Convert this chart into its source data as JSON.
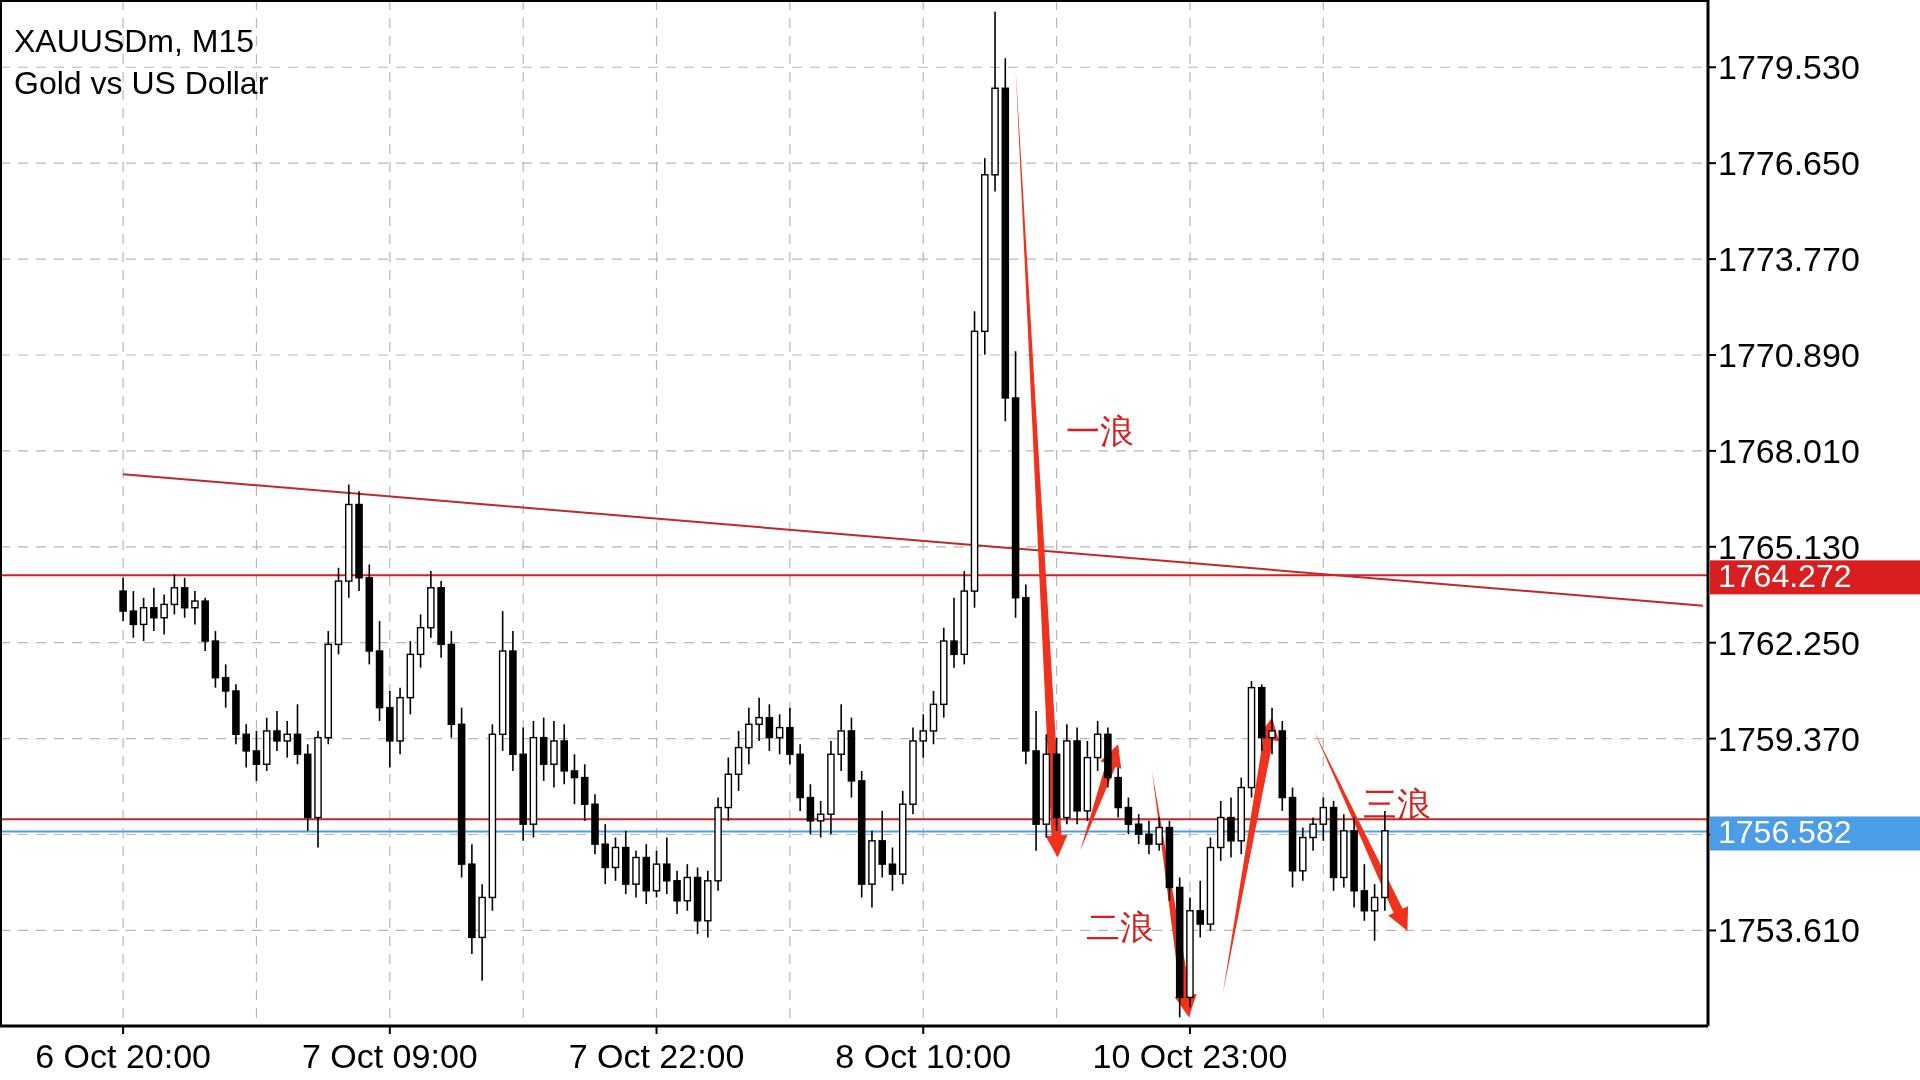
{
  "chart_data": {
    "type": "candlestick",
    "title": "XAUUSDm, M15",
    "subtitle": "Gold vs US Dollar",
    "categories": [
      "6 Oct 20:00",
      null,
      null,
      null,
      null,
      null,
      null,
      null,
      null,
      null,
      null,
      null,
      null,
      null,
      null,
      null,
      null,
      null,
      null,
      null,
      null,
      null,
      null,
      null,
      null,
      null,
      "7 Oct 09:00",
      null,
      null,
      null,
      null,
      null,
      null,
      null,
      null,
      null,
      null,
      null,
      null,
      null,
      null,
      null,
      null,
      null,
      null,
      null,
      null,
      null,
      null,
      null,
      null,
      null,
      "7 Oct 22:00",
      null,
      null,
      null,
      null,
      null,
      null,
      null,
      null,
      null,
      null,
      null,
      null,
      null,
      null,
      null,
      null,
      null,
      null,
      null,
      null,
      null,
      null,
      null,
      null,
      null,
      "8 Oct 10:00",
      null,
      null,
      null,
      null,
      null,
      null,
      null,
      null,
      null,
      null,
      null,
      null,
      null,
      null,
      null,
      null,
      null,
      null,
      null,
      null,
      null,
      null,
      null,
      null,
      null,
      "10 Oct 23:00",
      null,
      null,
      null,
      null,
      null,
      null,
      null,
      null,
      null,
      null,
      null,
      null,
      null,
      null,
      null,
      null,
      null,
      null,
      null,
      null,
      null,
      null,
      null,
      null,
      null,
      null,
      null,
      null,
      null,
      null,
      null,
      null,
      null,
      null,
      null,
      null,
      null,
      null,
      null,
      null,
      null,
      null,
      null,
      null,
      null,
      null,
      null,
      null,
      null,
      null
    ],
    "ohlc": [
      [
        1763.8,
        1764.2,
        1762.9,
        1763.2
      ],
      [
        1763.2,
        1763.8,
        1762.4,
        1762.8
      ],
      [
        1762.8,
        1763.6,
        1762.3,
        1763.3
      ],
      [
        1763.3,
        1763.9,
        1762.6,
        1763.0
      ],
      [
        1763.0,
        1763.7,
        1762.5,
        1763.4
      ],
      [
        1763.4,
        1764.3,
        1763.1,
        1763.9
      ],
      [
        1763.9,
        1764.2,
        1763.0,
        1763.3
      ],
      [
        1763.3,
        1763.8,
        1762.8,
        1763.5
      ],
      [
        1763.5,
        1763.6,
        1762.0,
        1762.3
      ],
      [
        1762.3,
        1762.6,
        1760.9,
        1761.2
      ],
      [
        1761.2,
        1761.6,
        1760.3,
        1760.8
      ],
      [
        1760.8,
        1761.0,
        1759.2,
        1759.5
      ],
      [
        1759.5,
        1759.8,
        1758.5,
        1759.0
      ],
      [
        1759.0,
        1759.6,
        1758.1,
        1758.6
      ],
      [
        1758.6,
        1760.0,
        1758.4,
        1759.6
      ],
      [
        1759.6,
        1760.2,
        1759.0,
        1759.3
      ],
      [
        1759.3,
        1759.9,
        1758.8,
        1759.5
      ],
      [
        1759.5,
        1760.4,
        1758.6,
        1758.9
      ],
      [
        1758.9,
        1759.2,
        1756.6,
        1757.0
      ],
      [
        1757.0,
        1759.6,
        1756.1,
        1759.4
      ],
      [
        1759.4,
        1762.6,
        1759.2,
        1762.2
      ],
      [
        1762.2,
        1764.5,
        1761.9,
        1764.1
      ],
      [
        1764.1,
        1767.0,
        1763.6,
        1766.4
      ],
      [
        1766.4,
        1766.8,
        1763.8,
        1764.2
      ],
      [
        1764.2,
        1764.6,
        1761.6,
        1762.0
      ],
      [
        1762.0,
        1762.9,
        1759.9,
        1760.3
      ],
      [
        1760.3,
        1760.8,
        1758.5,
        1759.3
      ],
      [
        1759.3,
        1760.9,
        1758.9,
        1760.6
      ],
      [
        1760.6,
        1762.3,
        1760.1,
        1761.9
      ],
      [
        1761.9,
        1763.1,
        1761.5,
        1762.7
      ],
      [
        1762.7,
        1764.4,
        1762.4,
        1763.9
      ],
      [
        1763.9,
        1764.1,
        1761.8,
        1762.2
      ],
      [
        1762.2,
        1762.6,
        1759.4,
        1759.8
      ],
      [
        1759.8,
        1760.3,
        1755.2,
        1755.6
      ],
      [
        1755.6,
        1756.2,
        1752.9,
        1753.4
      ],
      [
        1753.4,
        1755.0,
        1752.1,
        1754.6
      ],
      [
        1754.6,
        1759.8,
        1754.2,
        1759.5
      ],
      [
        1759.5,
        1763.2,
        1759.0,
        1762.0
      ],
      [
        1762.0,
        1762.6,
        1758.4,
        1758.9
      ],
      [
        1758.9,
        1759.7,
        1756.3,
        1756.8
      ],
      [
        1756.8,
        1759.9,
        1756.4,
        1759.4
      ],
      [
        1759.4,
        1760.0,
        1758.1,
        1758.6
      ],
      [
        1758.6,
        1759.9,
        1757.9,
        1759.3
      ],
      [
        1759.3,
        1759.8,
        1758.0,
        1758.4
      ],
      [
        1758.4,
        1758.9,
        1757.4,
        1758.2
      ],
      [
        1758.2,
        1758.6,
        1756.9,
        1757.4
      ],
      [
        1757.4,
        1757.7,
        1755.9,
        1756.2
      ],
      [
        1756.2,
        1756.8,
        1755.0,
        1755.5
      ],
      [
        1755.5,
        1756.4,
        1755.1,
        1756.1
      ],
      [
        1756.1,
        1756.6,
        1754.7,
        1755.0
      ],
      [
        1755.0,
        1756.0,
        1754.6,
        1755.8
      ],
      [
        1755.8,
        1756.2,
        1754.4,
        1754.8
      ],
      [
        1754.8,
        1756.0,
        1754.6,
        1755.6
      ],
      [
        1755.6,
        1756.4,
        1754.7,
        1755.1
      ],
      [
        1755.1,
        1755.4,
        1754.1,
        1754.5
      ],
      [
        1754.5,
        1755.6,
        1754.2,
        1755.2
      ],
      [
        1755.2,
        1755.5,
        1753.5,
        1753.9
      ],
      [
        1753.9,
        1755.4,
        1753.4,
        1755.1
      ],
      [
        1755.1,
        1757.6,
        1754.8,
        1757.3
      ],
      [
        1757.3,
        1758.8,
        1756.9,
        1758.3
      ],
      [
        1758.3,
        1759.6,
        1757.8,
        1759.1
      ],
      [
        1759.1,
        1760.3,
        1758.6,
        1759.8
      ],
      [
        1759.8,
        1760.6,
        1759.3,
        1760.0
      ],
      [
        1760.0,
        1760.4,
        1759.0,
        1759.4
      ],
      [
        1759.4,
        1760.1,
        1758.9,
        1759.7
      ],
      [
        1759.7,
        1760.3,
        1758.6,
        1758.9
      ],
      [
        1758.9,
        1759.2,
        1757.2,
        1757.6
      ],
      [
        1757.6,
        1758.0,
        1756.5,
        1756.9
      ],
      [
        1756.9,
        1757.5,
        1756.4,
        1757.1
      ],
      [
        1757.1,
        1759.3,
        1756.5,
        1758.9
      ],
      [
        1758.9,
        1760.4,
        1758.4,
        1759.6
      ],
      [
        1759.6,
        1760.0,
        1757.6,
        1758.1
      ],
      [
        1758.1,
        1758.4,
        1754.6,
        1755.0
      ],
      [
        1755.0,
        1756.6,
        1754.3,
        1756.3
      ],
      [
        1756.3,
        1757.2,
        1755.2,
        1755.6
      ],
      [
        1755.6,
        1756.1,
        1754.8,
        1755.3
      ],
      [
        1755.3,
        1757.8,
        1755.0,
        1757.4
      ],
      [
        1757.4,
        1759.7,
        1757.1,
        1759.3
      ],
      [
        1759.3,
        1760.1,
        1758.8,
        1759.6
      ],
      [
        1759.6,
        1760.8,
        1759.2,
        1760.4
      ],
      [
        1760.4,
        1762.7,
        1760.0,
        1762.3
      ],
      [
        1762.3,
        1763.6,
        1761.5,
        1761.9
      ],
      [
        1761.9,
        1764.4,
        1761.6,
        1763.8
      ],
      [
        1763.8,
        1772.2,
        1763.3,
        1771.6
      ],
      [
        1771.6,
        1776.8,
        1770.9,
        1776.3
      ],
      [
        1776.3,
        1781.2,
        1775.8,
        1778.9
      ],
      [
        1778.9,
        1779.8,
        1768.9,
        1769.6
      ],
      [
        1769.6,
        1771.0,
        1763.0,
        1763.6
      ],
      [
        1763.6,
        1764.0,
        1758.6,
        1759.0
      ],
      [
        1759.0,
        1760.2,
        1756.0,
        1756.8
      ],
      [
        1756.8,
        1759.5,
        1756.4,
        1758.9
      ],
      [
        1758.9,
        1759.4,
        1756.6,
        1757.0
      ],
      [
        1757.0,
        1759.8,
        1756.8,
        1759.3
      ],
      [
        1759.3,
        1759.7,
        1756.8,
        1757.2
      ],
      [
        1757.2,
        1759.3,
        1756.9,
        1758.8
      ],
      [
        1758.8,
        1759.9,
        1758.4,
        1759.5
      ],
      [
        1759.5,
        1759.7,
        1757.9,
        1758.2
      ],
      [
        1758.2,
        1758.5,
        1757.0,
        1757.3
      ],
      [
        1757.3,
        1757.6,
        1756.5,
        1756.8
      ],
      [
        1756.8,
        1757.1,
        1756.2,
        1756.5
      ],
      [
        1756.5,
        1756.9,
        1755.9,
        1756.2
      ],
      [
        1756.2,
        1757.0,
        1756.0,
        1756.7
      ],
      [
        1756.7,
        1756.9,
        1754.5,
        1754.9
      ],
      [
        1754.9,
        1755.2,
        1751.0,
        1751.6
      ],
      [
        1751.6,
        1754.6,
        1751.3,
        1754.2
      ],
      [
        1754.2,
        1755.1,
        1753.4,
        1753.8
      ],
      [
        1753.8,
        1756.4,
        1753.6,
        1756.1
      ],
      [
        1756.1,
        1757.5,
        1755.7,
        1757.0
      ],
      [
        1757.0,
        1757.6,
        1755.8,
        1756.3
      ],
      [
        1756.3,
        1758.2,
        1755.9,
        1757.9
      ],
      [
        1757.9,
        1761.1,
        1757.6,
        1760.9
      ],
      [
        1760.9,
        1761.0,
        1759.0,
        1759.4
      ],
      [
        1759.4,
        1760.3,
        1758.9,
        1759.6
      ],
      [
        1759.6,
        1759.9,
        1757.2,
        1757.6
      ],
      [
        1757.6,
        1757.9,
        1754.9,
        1755.4
      ],
      [
        1755.4,
        1756.7,
        1755.1,
        1756.4
      ],
      [
        1756.4,
        1757.0,
        1756.0,
        1756.8
      ],
      [
        1756.8,
        1757.6,
        1756.3,
        1757.3
      ],
      [
        1757.3,
        1757.5,
        1754.8,
        1755.2
      ],
      [
        1755.2,
        1757.1,
        1754.9,
        1756.6
      ],
      [
        1756.6,
        1757.0,
        1754.3,
        1754.8
      ],
      [
        1754.8,
        1755.6,
        1753.9,
        1754.2
      ],
      [
        1754.2,
        1755.0,
        1753.3,
        1754.6
      ],
      [
        1754.6,
        1757.2,
        1754.2,
        1756.6
      ],
      null,
      null,
      null,
      null,
      null,
      null,
      null,
      null,
      null,
      null,
      null,
      null,
      null,
      null,
      null,
      null,
      null,
      null,
      null,
      null,
      null,
      null,
      null,
      null,
      null,
      null,
      null,
      null,
      null,
      null,
      null
    ],
    "series": [
      {
        "type": "line",
        "color": "#c0282a",
        "values": [
          1767.31,
          null,
          null,
          null,
          null,
          null,
          null,
          null,
          null,
          null,
          null,
          null,
          null,
          null,
          null,
          null,
          null,
          null,
          null,
          null,
          null,
          null,
          null,
          null,
          null,
          null,
          null,
          null,
          null,
          null,
          null,
          null,
          null,
          null,
          null,
          null,
          null,
          null,
          null,
          null,
          null,
          null,
          null,
          null,
          null,
          null,
          null,
          null,
          null,
          null,
          null,
          null,
          null,
          null,
          null,
          null,
          null,
          null,
          null,
          null,
          null,
          null,
          null,
          null,
          null,
          null,
          null,
          null,
          null,
          null,
          null,
          null,
          null,
          null,
          null,
          null,
          null,
          null,
          null,
          null,
          null,
          null,
          null,
          null,
          null,
          null,
          null,
          null,
          null,
          null,
          null,
          null,
          null,
          null,
          null,
          null,
          null,
          null,
          null,
          null,
          null,
          null,
          null,
          null,
          null,
          null,
          null,
          null,
          null,
          null,
          null,
          null,
          null,
          null,
          null,
          null,
          null,
          null,
          null,
          null,
          null,
          null,
          null,
          null,
          null,
          null,
          null,
          null,
          null,
          null,
          null,
          null,
          null,
          null,
          null,
          null,
          null,
          null,
          null,
          null,
          null,
          null,
          null,
          null,
          null,
          null,
          null,
          null,
          null,
          null,
          null,
          null,
          null,
          null,
          1763.36
        ]
      }
    ],
    "ref_lines": [
      {
        "axis": "y",
        "value": 1764.272,
        "label": "1764.272",
        "color": "#d81e1e"
      },
      {
        "axis": "y",
        "value": 1756.95,
        "label": null,
        "color": "#c0282a"
      },
      {
        "axis": "y",
        "value": 1756.582,
        "label": "1756.582",
        "color": "#4a9de6"
      }
    ],
    "ylim": [
      1750.74,
      1781.55
    ],
    "yticks": [
      {
        "value": 1753.61,
        "label": "1753.610"
      },
      {
        "value": 1756.49,
        "label": null
      },
      {
        "value": 1759.37,
        "label": "1759.370"
      },
      {
        "value": 1762.25,
        "label": "1762.250"
      },
      {
        "value": 1765.13,
        "label": "1765.130"
      },
      {
        "value": 1768.01,
        "label": "1768.010"
      },
      {
        "value": 1770.89,
        "label": "1770.890"
      },
      {
        "value": 1773.77,
        "label": "1773.770"
      },
      {
        "value": 1776.65,
        "label": "1776.650"
      },
      {
        "value": 1779.53,
        "label": "1779.530"
      }
    ],
    "grid": true,
    "annotations": [
      "一浪",
      "二浪",
      "三浪"
    ]
  }
}
